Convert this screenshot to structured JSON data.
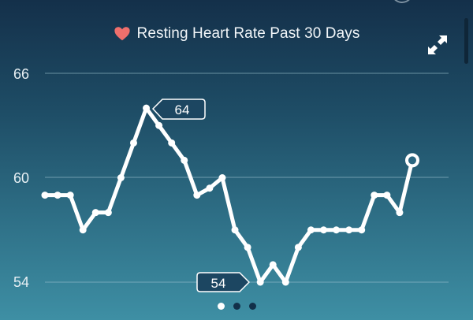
{
  "header": {
    "title": "Resting Heart Rate Past 30 Days",
    "icon": "heart-icon",
    "heart_color": "#ef6f6c",
    "expand_icon": "expand-arrows-icon"
  },
  "pager": {
    "count": 3,
    "active": 0
  },
  "chart_data": {
    "type": "line",
    "title": "Resting Heart Rate Past 30 Days",
    "xlabel": "",
    "ylabel": "",
    "y_ticks": [
      66,
      60,
      54
    ],
    "ylim": [
      54,
      66
    ],
    "grid": true,
    "x": [
      1,
      2,
      3,
      4,
      5,
      6,
      7,
      8,
      9,
      10,
      11,
      12,
      13,
      14,
      15,
      16,
      17,
      18,
      19,
      20,
      21,
      22,
      23,
      24,
      25,
      26,
      27,
      28,
      29,
      30
    ],
    "values": [
      59,
      59,
      59,
      57,
      58,
      58,
      60,
      62,
      64,
      63,
      62,
      61,
      59,
      59.4,
      60,
      57,
      56,
      54,
      55,
      54,
      56,
      57,
      57,
      57,
      57,
      57,
      59,
      59,
      58,
      61
    ],
    "annotations": [
      {
        "label": "64",
        "type": "max",
        "index": 8
      },
      {
        "label": "54",
        "type": "min",
        "index": 17
      }
    ],
    "last_point_highlighted": true
  },
  "labels": {
    "y66": "66",
    "y60": "60",
    "y54": "54",
    "max": "64",
    "min": "54"
  }
}
